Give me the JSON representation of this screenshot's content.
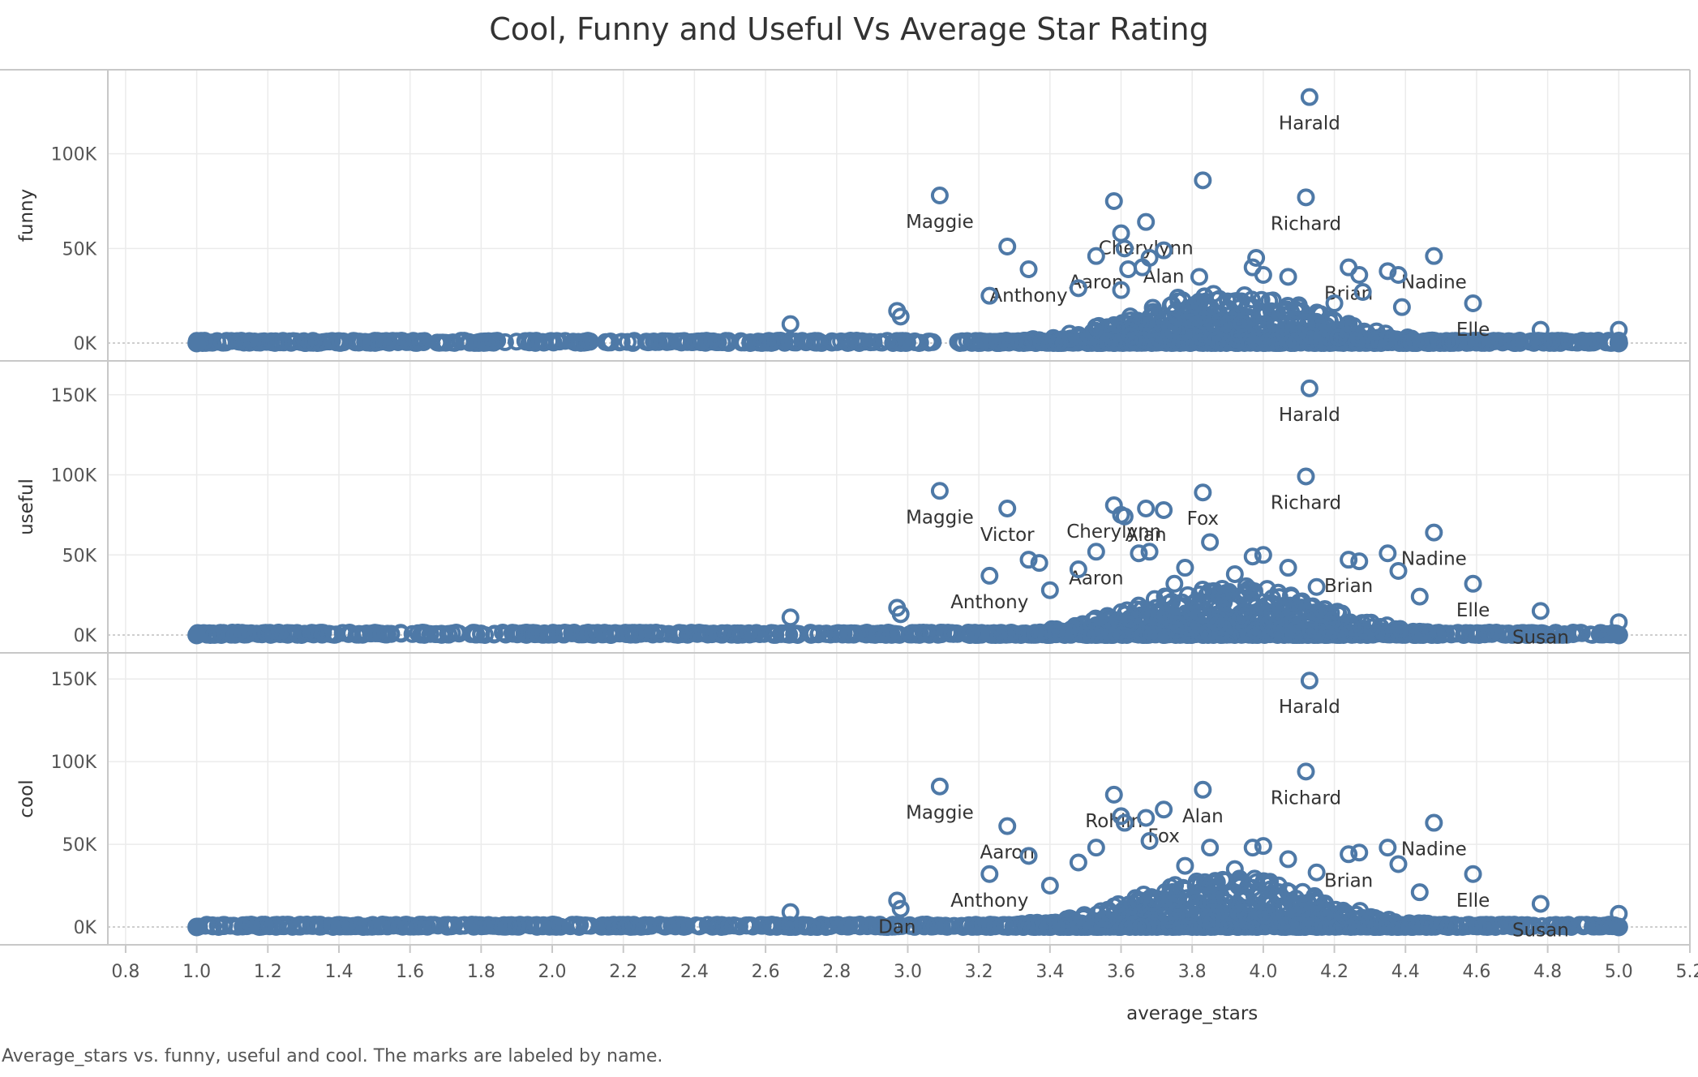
{
  "colors": {
    "mark": "#4e79a7",
    "grid": "#ebebeb",
    "border": "#c8c8c8",
    "zero_line": "#b0b0b0",
    "text": "#333333",
    "tick_text": "#555555"
  },
  "chart_data": {
    "type": "scatter",
    "title": "Cool, Funny and Useful Vs Average Star Rating",
    "xlabel": "average_stars",
    "xlim": [
      0.75,
      5.2
    ],
    "x_ticks": [
      0.8,
      1.0,
      1.2,
      1.4,
      1.6,
      1.8,
      2.0,
      2.2,
      2.4,
      2.6,
      2.8,
      3.0,
      3.2,
      3.4,
      3.6,
      3.8,
      4.0,
      4.2,
      4.4,
      4.6,
      4.8,
      5.0,
      5.2
    ],
    "x_tick_labels": [
      "0.8",
      "1.0",
      "1.2",
      "1.4",
      "1.6",
      "1.8",
      "2.0",
      "2.2",
      "2.4",
      "2.6",
      "2.8",
      "3.0",
      "3.2",
      "3.4",
      "3.6",
      "3.8",
      "4.0",
      "4.2",
      "4.4",
      "4.6",
      "4.8",
      "5.0",
      "5.2"
    ],
    "grid": true,
    "panels": [
      {
        "ylabel": "funny",
        "ylim": [
          0,
          135000
        ],
        "y_ticks": [
          0,
          50000,
          100000
        ],
        "y_tick_labels": [
          "0K",
          "50K",
          "100K"
        ],
        "points": [
          {
            "x": 4.13,
            "y": 130000,
            "label": "Harald"
          },
          {
            "x": 3.09,
            "y": 78000,
            "label": "Maggie"
          },
          {
            "x": 3.83,
            "y": 86000
          },
          {
            "x": 4.12,
            "y": 77000,
            "label": "Richard"
          },
          {
            "x": 3.58,
            "y": 75000
          },
          {
            "x": 3.67,
            "y": 64000,
            "label": "Cherylynn"
          },
          {
            "x": 3.6,
            "y": 58000
          },
          {
            "x": 3.28,
            "y": 51000
          },
          {
            "x": 3.53,
            "y": 46000,
            "label": "Aaron"
          },
          {
            "x": 3.72,
            "y": 49000,
            "label": "Alan"
          },
          {
            "x": 3.68,
            "y": 45000
          },
          {
            "x": 3.61,
            "y": 50000
          },
          {
            "x": 3.98,
            "y": 45000
          },
          {
            "x": 4.48,
            "y": 46000,
            "label": "Nadine"
          },
          {
            "x": 4.24,
            "y": 40000,
            "label": "Brian"
          },
          {
            "x": 3.34,
            "y": 39000,
            "label": "Anthony"
          },
          {
            "x": 4.35,
            "y": 38000
          },
          {
            "x": 4.38,
            "y": 36000
          },
          {
            "x": 4.27,
            "y": 36000
          },
          {
            "x": 3.97,
            "y": 40000
          },
          {
            "x": 3.62,
            "y": 39000
          },
          {
            "x": 4.07,
            "y": 35000
          },
          {
            "x": 3.82,
            "y": 35000
          },
          {
            "x": 4.0,
            "y": 36000
          },
          {
            "x": 3.66,
            "y": 40000
          },
          {
            "x": 3.23,
            "y": 25000
          },
          {
            "x": 4.59,
            "y": 21000,
            "label": "Elle"
          },
          {
            "x": 3.48,
            "y": 29000
          },
          {
            "x": 2.97,
            "y": 17000
          },
          {
            "x": 2.98,
            "y": 14000
          },
          {
            "x": 2.67,
            "y": 10000
          },
          {
            "x": 5.0,
            "y": 7000
          },
          {
            "x": 4.78,
            "y": 7000
          },
          {
            "x": 4.28,
            "y": 27000
          },
          {
            "x": 3.76,
            "y": 24000
          },
          {
            "x": 3.9,
            "y": 22000
          },
          {
            "x": 4.1,
            "y": 20000
          },
          {
            "x": 4.39,
            "y": 19000
          },
          {
            "x": 3.86,
            "y": 26000
          },
          {
            "x": 4.2,
            "y": 21000
          },
          {
            "x": 3.6,
            "y": 28000
          }
        ]
      },
      {
        "ylabel": "useful",
        "ylim": [
          0,
          160000
        ],
        "y_ticks": [
          0,
          50000,
          100000,
          150000
        ],
        "y_tick_labels": [
          "0K",
          "50K",
          "100K",
          "150K"
        ],
        "points": [
          {
            "x": 4.13,
            "y": 154000,
            "label": "Harald"
          },
          {
            "x": 4.12,
            "y": 99000,
            "label": "Richard"
          },
          {
            "x": 3.09,
            "y": 90000,
            "label": "Maggie"
          },
          {
            "x": 3.83,
            "y": 89000,
            "label": "Fox"
          },
          {
            "x": 3.58,
            "y": 81000,
            "label": "Cherylynn"
          },
          {
            "x": 3.67,
            "y": 79000,
            "label": "Alan"
          },
          {
            "x": 3.72,
            "y": 78000
          },
          {
            "x": 3.28,
            "y": 79000,
            "label": "Victor"
          },
          {
            "x": 3.6,
            "y": 75000
          },
          {
            "x": 3.61,
            "y": 74000
          },
          {
            "x": 4.48,
            "y": 64000,
            "label": "Nadine"
          },
          {
            "x": 3.85,
            "y": 58000
          },
          {
            "x": 3.53,
            "y": 52000,
            "label": "Aaron"
          },
          {
            "x": 3.65,
            "y": 51000
          },
          {
            "x": 3.68,
            "y": 52000
          },
          {
            "x": 4.35,
            "y": 51000
          },
          {
            "x": 3.97,
            "y": 49000
          },
          {
            "x": 4.0,
            "y": 50000
          },
          {
            "x": 4.24,
            "y": 47000,
            "label": "Brian"
          },
          {
            "x": 4.27,
            "y": 46000
          },
          {
            "x": 3.34,
            "y": 47000
          },
          {
            "x": 3.37,
            "y": 45000
          },
          {
            "x": 3.23,
            "y": 37000,
            "label": "Anthony"
          },
          {
            "x": 4.59,
            "y": 32000,
            "label": "Elle"
          },
          {
            "x": 4.78,
            "y": 15000,
            "label": "Susan"
          },
          {
            "x": 4.38,
            "y": 40000
          },
          {
            "x": 3.48,
            "y": 41000
          },
          {
            "x": 3.78,
            "y": 42000
          },
          {
            "x": 4.07,
            "y": 42000
          },
          {
            "x": 3.92,
            "y": 38000
          },
          {
            "x": 4.44,
            "y": 24000
          },
          {
            "x": 2.97,
            "y": 17000
          },
          {
            "x": 2.98,
            "y": 13000
          },
          {
            "x": 2.67,
            "y": 11000
          },
          {
            "x": 5.0,
            "y": 8000
          },
          {
            "x": 3.4,
            "y": 28000
          },
          {
            "x": 3.75,
            "y": 32000
          },
          {
            "x": 4.15,
            "y": 30000
          }
        ]
      },
      {
        "ylabel": "cool",
        "ylim": [
          0,
          155000
        ],
        "y_ticks": [
          0,
          50000,
          100000,
          150000
        ],
        "y_tick_labels": [
          "0K",
          "50K",
          "100K",
          "150K"
        ],
        "points": [
          {
            "x": 4.13,
            "y": 149000,
            "label": "Harald"
          },
          {
            "x": 4.12,
            "y": 94000,
            "label": "Richard"
          },
          {
            "x": 3.09,
            "y": 85000,
            "label": "Maggie"
          },
          {
            "x": 3.83,
            "y": 83000,
            "label": "Alan"
          },
          {
            "x": 3.58,
            "y": 80000,
            "label": "Rohlin"
          },
          {
            "x": 3.72,
            "y": 71000,
            "label": "Fox"
          },
          {
            "x": 3.6,
            "y": 67000
          },
          {
            "x": 3.67,
            "y": 66000
          },
          {
            "x": 3.61,
            "y": 63000
          },
          {
            "x": 4.48,
            "y": 63000,
            "label": "Nadine"
          },
          {
            "x": 3.28,
            "y": 61000,
            "label": "Aaron"
          },
          {
            "x": 3.68,
            "y": 52000
          },
          {
            "x": 3.85,
            "y": 48000
          },
          {
            "x": 3.97,
            "y": 48000
          },
          {
            "x": 4.0,
            "y": 49000
          },
          {
            "x": 4.35,
            "y": 48000
          },
          {
            "x": 4.24,
            "y": 44000,
            "label": "Brian"
          },
          {
            "x": 4.27,
            "y": 45000
          },
          {
            "x": 3.53,
            "y": 48000
          },
          {
            "x": 3.34,
            "y": 43000
          },
          {
            "x": 4.38,
            "y": 38000
          },
          {
            "x": 3.48,
            "y": 39000
          },
          {
            "x": 3.23,
            "y": 32000,
            "label": "Anthony"
          },
          {
            "x": 4.59,
            "y": 32000,
            "label": "Elle"
          },
          {
            "x": 4.78,
            "y": 14000,
            "label": "Susan"
          },
          {
            "x": 2.97,
            "y": 16000,
            "label": "Dan"
          },
          {
            "x": 2.98,
            "y": 11000
          },
          {
            "x": 2.67,
            "y": 9000
          },
          {
            "x": 5.0,
            "y": 8000
          },
          {
            "x": 4.07,
            "y": 41000
          },
          {
            "x": 3.92,
            "y": 35000
          },
          {
            "x": 3.78,
            "y": 37000
          },
          {
            "x": 4.44,
            "y": 21000
          },
          {
            "x": 3.4,
            "y": 25000
          },
          {
            "x": 4.15,
            "y": 33000
          }
        ]
      }
    ]
  },
  "caption": "Average_stars vs. funny, useful and cool.  The marks are labeled by name."
}
